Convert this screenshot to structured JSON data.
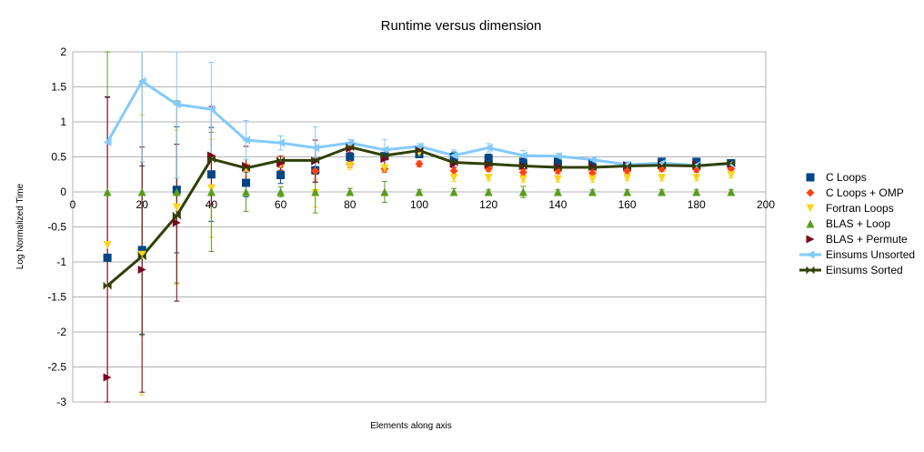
{
  "chart_data": {
    "type": "scatter",
    "title": "Runtime versus dimension",
    "xlabel": "Elements along axis",
    "ylabel": "Log Normalized Time",
    "xlim": [
      0,
      200
    ],
    "ylim": [
      -3,
      2
    ],
    "xticks": [
      "0",
      "20",
      "40",
      "60",
      "80",
      "100",
      "120",
      "140",
      "160",
      "180",
      "200"
    ],
    "yticks": [
      "2",
      "1.5",
      "1",
      "0.5",
      "0",
      "-0.5",
      "-1",
      "-1.5",
      "-2",
      "-2.5",
      "-3"
    ],
    "grid": true,
    "legend_position": "right",
    "x": [
      10,
      20,
      30,
      40,
      50,
      60,
      70,
      80,
      90,
      100,
      110,
      120,
      130,
      140,
      150,
      160,
      170,
      180,
      190
    ],
    "series": [
      {
        "name": "C Loops",
        "marker": "square",
        "color": "#004586",
        "values": [
          -0.94,
          -0.83,
          0.03,
          0.25,
          0.13,
          0.24,
          0.31,
          0.5,
          0.51,
          0.54,
          0.5,
          0.48,
          0.43,
          0.43,
          0.41,
          0.35,
          0.43,
          0.43,
          0.41
        ],
        "errors": [
          2.3,
          1.2,
          0.9,
          0.67,
          0.2,
          0.12,
          0.17,
          0.06,
          0.05,
          0.04,
          0.07,
          0.06,
          0.05,
          0.04,
          0.04,
          0.05,
          0.04,
          0.04,
          0.04
        ]
      },
      {
        "name": "C Loops + OMP",
        "marker": "diamond",
        "color": "#ff420e",
        "values": [
          null,
          null,
          null,
          null,
          0.35,
          0.4,
          0.3,
          0.4,
          0.33,
          0.4,
          0.3,
          0.33,
          0.28,
          0.3,
          0.27,
          0.3,
          0.33,
          0.32,
          0.33
        ],
        "errors": [
          null,
          null,
          null,
          null,
          0.05,
          0.05,
          0.05,
          0.05,
          0.05,
          0.04,
          0.05,
          0.04,
          0.04,
          0.04,
          0.04,
          0.04,
          0.04,
          0.04,
          0.04
        ]
      },
      {
        "name": "Fortran Loops",
        "marker": "triangle-down",
        "color": "#ffd320",
        "values": [
          -0.76,
          -0.9,
          -0.22,
          0.05,
          0.34,
          0.4,
          -0.02,
          0.37,
          0.34,
          0.56,
          0.2,
          0.2,
          0.18,
          0.18,
          0.18,
          0.2,
          0.2,
          0.2,
          0.24
        ],
        "errors": [
          null,
          2.0,
          1.1,
          0.7,
          0.12,
          0.1,
          0.2,
          0.05,
          0.05,
          0.04,
          0.05,
          0.04,
          0.04,
          0.04,
          0.04,
          0.04,
          0.04,
          0.04,
          0.04
        ]
      },
      {
        "name": "BLAS + Loop",
        "marker": "triangle-up",
        "color": "#579d1c",
        "values": [
          0,
          0,
          0,
          0,
          0,
          0,
          0,
          0,
          0,
          0,
          0,
          0,
          0,
          0,
          0,
          0,
          0,
          0,
          0
        ],
        "errors": [
          3.0,
          2.05,
          1.3,
          0.85,
          0.28,
          0.07,
          0.3,
          0.05,
          0.15,
          0.03,
          0.05,
          0.03,
          0.08,
          0.03,
          0.03,
          0.03,
          0.03,
          0.03,
          0.03
        ]
      },
      {
        "name": "BLAS + Permute",
        "marker": "triangle-right",
        "color": "#7e0021",
        "values": [
          -2.65,
          -1.11,
          -0.44,
          0.52,
          0.37,
          0.41,
          0.44,
          0.62,
          0.47,
          0.6,
          0.4,
          0.39,
          0.37,
          0.36,
          0.36,
          0.38,
          0.39,
          0.39,
          0.4
        ],
        "errors": [
          4.0,
          1.75,
          1.12,
          0.7,
          0.28,
          0.1,
          0.3,
          0.06,
          0.15,
          0.05,
          0.05,
          0.04,
          0.04,
          0.04,
          0.04,
          0.04,
          0.04,
          0.04,
          0.04
        ]
      },
      {
        "name": "Einsums Unsorted",
        "marker": "triangle-left",
        "color": "#83caff",
        "line": true,
        "values": [
          0.71,
          1.58,
          1.25,
          1.18,
          0.74,
          0.7,
          0.63,
          0.7,
          0.6,
          0.65,
          0.52,
          0.63,
          0.52,
          0.51,
          0.46,
          0.39,
          0.41,
          0.38,
          0.4
        ],
        "errors": [
          null,
          1.15,
          1.05,
          0.67,
          0.28,
          0.1,
          0.3,
          0.05,
          0.15,
          0.04,
          0.08,
          0.06,
          0.07,
          0.04,
          0.04,
          0.04,
          0.04,
          0.04,
          0.04
        ]
      },
      {
        "name": "Einsums Sorted",
        "marker": "bowtie",
        "color": "#314004",
        "line": true,
        "values": [
          -1.34,
          -0.92,
          -0.34,
          0.47,
          0.34,
          0.45,
          0.45,
          0.64,
          0.52,
          0.59,
          0.42,
          0.4,
          0.37,
          0.35,
          0.35,
          0.37,
          0.38,
          0.37,
          0.41
        ],
        "errors": [
          null,
          null,
          null,
          null,
          null,
          null,
          null,
          null,
          null,
          null,
          null,
          null,
          null,
          null,
          null,
          null,
          null,
          null,
          null
        ]
      }
    ]
  }
}
